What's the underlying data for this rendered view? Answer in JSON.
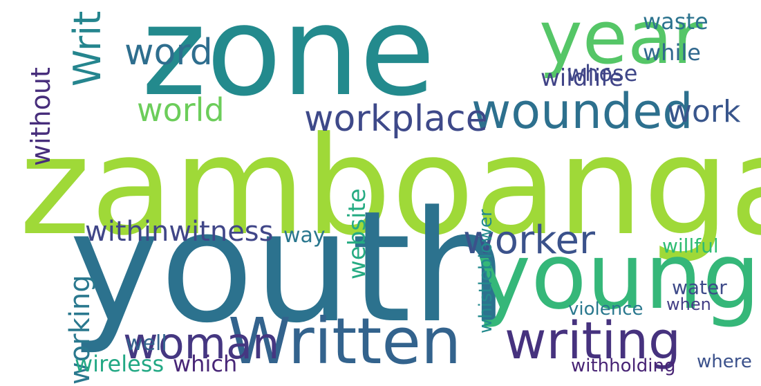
{
  "words": [
    {
      "text": "zone",
      "color": "#238a8d"
    },
    {
      "text": "zamboanga",
      "color": "#9fd938"
    },
    {
      "text": "youth",
      "color": "#2c728e"
    },
    {
      "text": "young",
      "color": "#35b779"
    },
    {
      "text": "year",
      "color": "#55c667"
    },
    {
      "text": "Written",
      "color": "#33638d"
    },
    {
      "text": "writing",
      "color": "#46327e"
    },
    {
      "text": "wounded",
      "color": "#2d708e"
    },
    {
      "text": "woman",
      "color": "#453781"
    },
    {
      "text": "worker",
      "color": "#3b528b"
    },
    {
      "text": "word",
      "color": "#2e6e8e"
    },
    {
      "text": "Writ",
      "color": "#25858e"
    },
    {
      "text": "workplace",
      "color": "#3e4989"
    },
    {
      "text": "world",
      "color": "#6ccd5a"
    },
    {
      "text": "work",
      "color": "#39568c"
    },
    {
      "text": "withinwitness",
      "color": "#404688"
    },
    {
      "text": "working",
      "color": "#2a788e"
    },
    {
      "text": "without",
      "color": "#472d7b"
    },
    {
      "text": "website",
      "color": "#25ab82"
    },
    {
      "text": "wireless",
      "color": "#22a884"
    },
    {
      "text": "which",
      "color": "#482677"
    },
    {
      "text": "wildlife",
      "color": "#414487"
    },
    {
      "text": "while",
      "color": "#31688e"
    },
    {
      "text": "whose",
      "color": "#3f4788"
    },
    {
      "text": "waste",
      "color": "#2c738e"
    },
    {
      "text": "way",
      "color": "#2a778e"
    },
    {
      "text": "well",
      "color": "#33638d"
    },
    {
      "text": "willful",
      "color": "#2ebc73"
    },
    {
      "text": "water",
      "color": "#3e4a89"
    },
    {
      "text": "violence",
      "color": "#2a788e"
    },
    {
      "text": "withholding",
      "color": "#482475"
    },
    {
      "text": "when",
      "color": "#433e85"
    },
    {
      "text": "whistleblower",
      "color": "#238a8d"
    },
    {
      "text": "where",
      "color": "#3b518b"
    }
  ]
}
